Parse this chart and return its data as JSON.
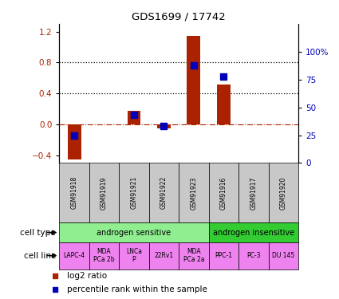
{
  "title": "GDS1699 / 17742",
  "samples": [
    "GSM91918",
    "GSM91919",
    "GSM91921",
    "GSM91922",
    "GSM91923",
    "GSM91916",
    "GSM91917",
    "GSM91920"
  ],
  "log2_ratio": [
    -0.45,
    0.0,
    0.18,
    -0.05,
    1.15,
    0.52,
    0.0,
    0.0
  ],
  "percentile_rank": [
    25,
    0,
    43,
    33,
    88,
    78,
    0,
    0
  ],
  "cell_type_groups": [
    {
      "label": "androgen sensitive",
      "start": 0,
      "end": 5,
      "color": "#90EE90"
    },
    {
      "label": "androgen insensitive",
      "start": 5,
      "end": 8,
      "color": "#33CC33"
    }
  ],
  "cell_lines": [
    "LAPC-4",
    "MDA\nPCa 2b",
    "LNCa\nP",
    "22Rv1",
    "MDA\nPCa 2a",
    "PPC-1",
    "PC-3",
    "DU 145"
  ],
  "cell_line_color": "#EE82EE",
  "sample_bg_color": "#C8C8C8",
  "bar_color": "#AA2200",
  "dot_color": "#0000BB",
  "ylim_left": [
    -0.5,
    1.3
  ],
  "ylim_right": [
    0,
    125
  ],
  "yticks_left": [
    -0.4,
    0.0,
    0.4,
    0.8,
    1.2
  ],
  "yticks_right": [
    0,
    25,
    50,
    75,
    100
  ],
  "hlines": [
    0.4,
    0.8
  ],
  "zero_line_y": 0.0,
  "right_tick_labels": [
    "0",
    "25",
    "50",
    "75",
    "100%"
  ]
}
